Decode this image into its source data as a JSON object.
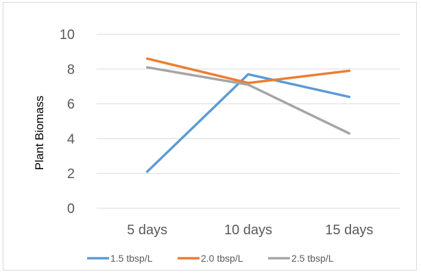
{
  "chart_data": {
    "type": "line",
    "title": "",
    "xlabel": "",
    "ylabel": "Plant Biomass",
    "categories": [
      "5 days",
      "10 days",
      "15 days"
    ],
    "ylim": [
      0,
      10
    ],
    "yticks": [
      0,
      2,
      4,
      6,
      8,
      10
    ],
    "grid": true,
    "legend_position": "bottom",
    "series": [
      {
        "name": "1.5 tbsp/L",
        "color": "#5b9bd5",
        "values": [
          2.1,
          7.7,
          6.4
        ]
      },
      {
        "name": "2.0 tbsp/L",
        "color": "#ed7d31",
        "values": [
          8.6,
          7.2,
          7.9
        ]
      },
      {
        "name": "2.5 tbsp/L",
        "color": "#a5a5a5",
        "values": [
          8.1,
          7.1,
          4.3
        ]
      }
    ]
  }
}
